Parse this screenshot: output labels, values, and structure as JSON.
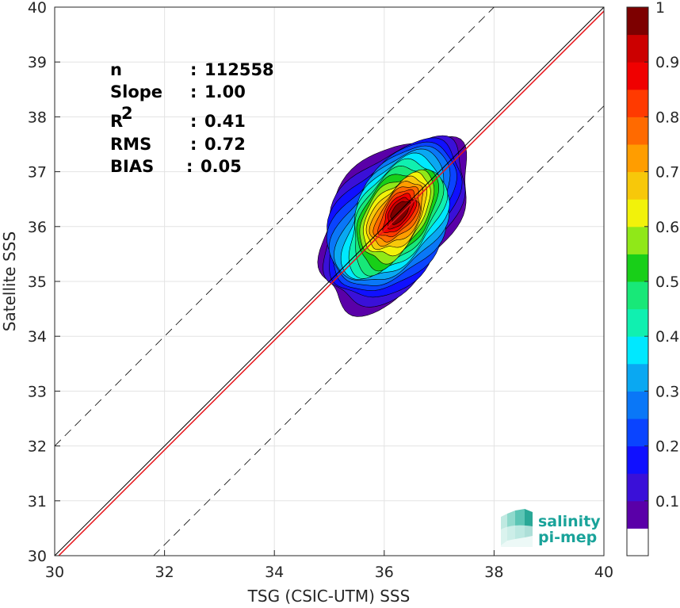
{
  "chart_data": {
    "type": "contour",
    "xlabel": "TSG (CSIC-UTM) SSS",
    "ylabel": "Satellite SSS",
    "xlim": [
      30,
      40
    ],
    "ylim": [
      30,
      40
    ],
    "xticks": [
      "30",
      "32",
      "34",
      "36",
      "38",
      "40"
    ],
    "yticks": [
      "30",
      "31",
      "32",
      "33",
      "34",
      "35",
      "36",
      "37",
      "38",
      "39",
      "40"
    ],
    "grid": true,
    "stats": [
      {
        "label": "n",
        "sep": ":",
        "value": "112558"
      },
      {
        "label": "Slope",
        "sep": ":",
        "value": "1.00"
      },
      {
        "label": "R",
        "sup": "2",
        "sep": ":",
        "value": "0.41"
      },
      {
        "label": "RMS",
        "sep": ":",
        "value": "0.72"
      },
      {
        "label": "BIAS",
        "sep": ":",
        "value": "0.05"
      }
    ],
    "lines": {
      "identity": {
        "x": [
          30,
          40
        ],
        "y": [
          30,
          40
        ],
        "color": "#000000"
      },
      "regression": {
        "x": [
          30,
          40
        ],
        "y": [
          29.97,
          39.97
        ],
        "color": "#e8141a",
        "slope": 1.0
      },
      "upper_bound": {
        "x": [
          30,
          38
        ],
        "y": [
          32,
          40
        ],
        "color": "#000000",
        "dashed": true
      },
      "lower_bound": {
        "x": [
          31.8,
          40
        ],
        "y": [
          30,
          38.2
        ],
        "color": "#000000",
        "dashed": true
      }
    },
    "density": {
      "center": {
        "x": 36.15,
        "y": 36.1
      },
      "major_axis_deg": 55,
      "levels": [
        0.05,
        0.1,
        0.15,
        0.2,
        0.25,
        0.3,
        0.35,
        0.4,
        0.45,
        0.5,
        0.55,
        0.6,
        0.65,
        0.7,
        0.75,
        0.8,
        0.85,
        0.9,
        0.95
      ]
    },
    "colorbar": {
      "ticks": [
        "0.1",
        "0.2",
        "0.3",
        "0.4",
        "0.5",
        "0.6",
        "0.7",
        "0.8",
        "0.9",
        "1"
      ],
      "colors": [
        "#ffffff",
        "#5a00a8",
        "#3a10d8",
        "#1010ff",
        "#0a44ff",
        "#0a77f7",
        "#0aa8f2",
        "#00e8ff",
        "#10f0b0",
        "#18e878",
        "#18cf18",
        "#90e818",
        "#f2f20a",
        "#f7c80a",
        "#ff9d00",
        "#ff6a00",
        "#ff3a00",
        "#f00000",
        "#cc0000",
        "#7d0000"
      ]
    }
  },
  "logo": {
    "line1": "salinity",
    "line2": "pi-mep"
  }
}
